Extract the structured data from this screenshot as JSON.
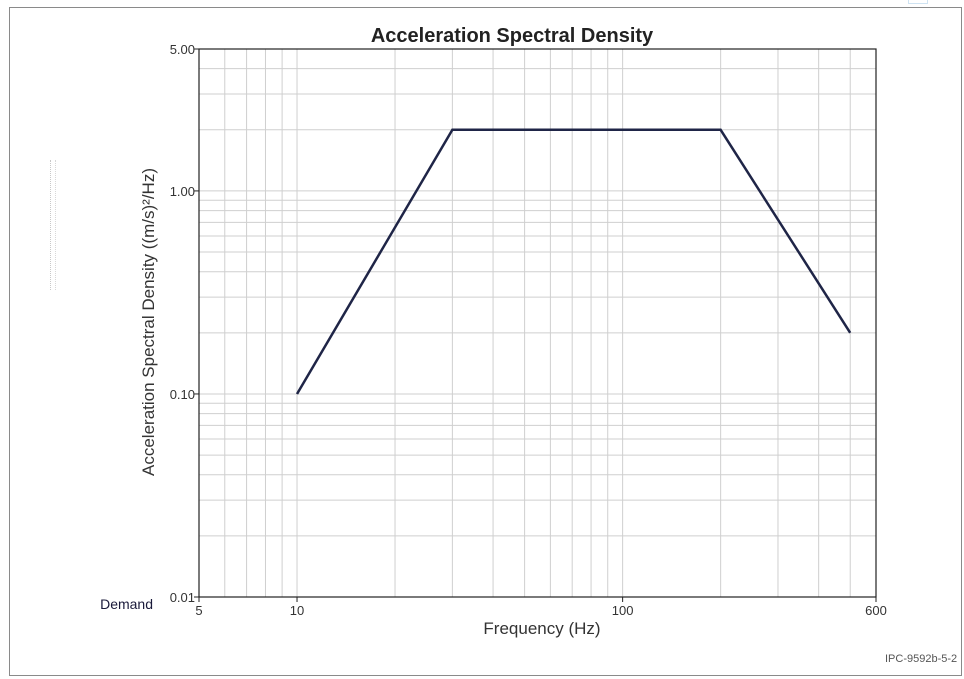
{
  "chart_data": {
    "type": "line",
    "title": "Acceleration Spectral Density",
    "xlabel": "Frequency (Hz)",
    "ylabel": "Acceleration Spectral Density ((m/s)²/Hz)",
    "xscale": "log",
    "yscale": "log",
    "xlim": [
      5,
      600
    ],
    "ylim": [
      0.01,
      5.0
    ],
    "x_ticks": [
      {
        "value": 5,
        "label": "5"
      },
      {
        "value": 10,
        "label": "10"
      },
      {
        "value": 100,
        "label": "100"
      },
      {
        "value": 600,
        "label": "600"
      }
    ],
    "y_ticks": [
      {
        "value": 0.01,
        "label": "0.01"
      },
      {
        "value": 0.1,
        "label": "0.10"
      },
      {
        "value": 1.0,
        "label": "1.00"
      },
      {
        "value": 5.0,
        "label": "5.00"
      }
    ],
    "grid": true,
    "series": [
      {
        "name": "Demand",
        "color": "#1f2547",
        "x": [
          10,
          30,
          200,
          500
        ],
        "y": [
          0.1,
          2.0,
          2.0,
          0.2
        ]
      }
    ]
  },
  "figure_id": "IPC-9592b-5-2"
}
